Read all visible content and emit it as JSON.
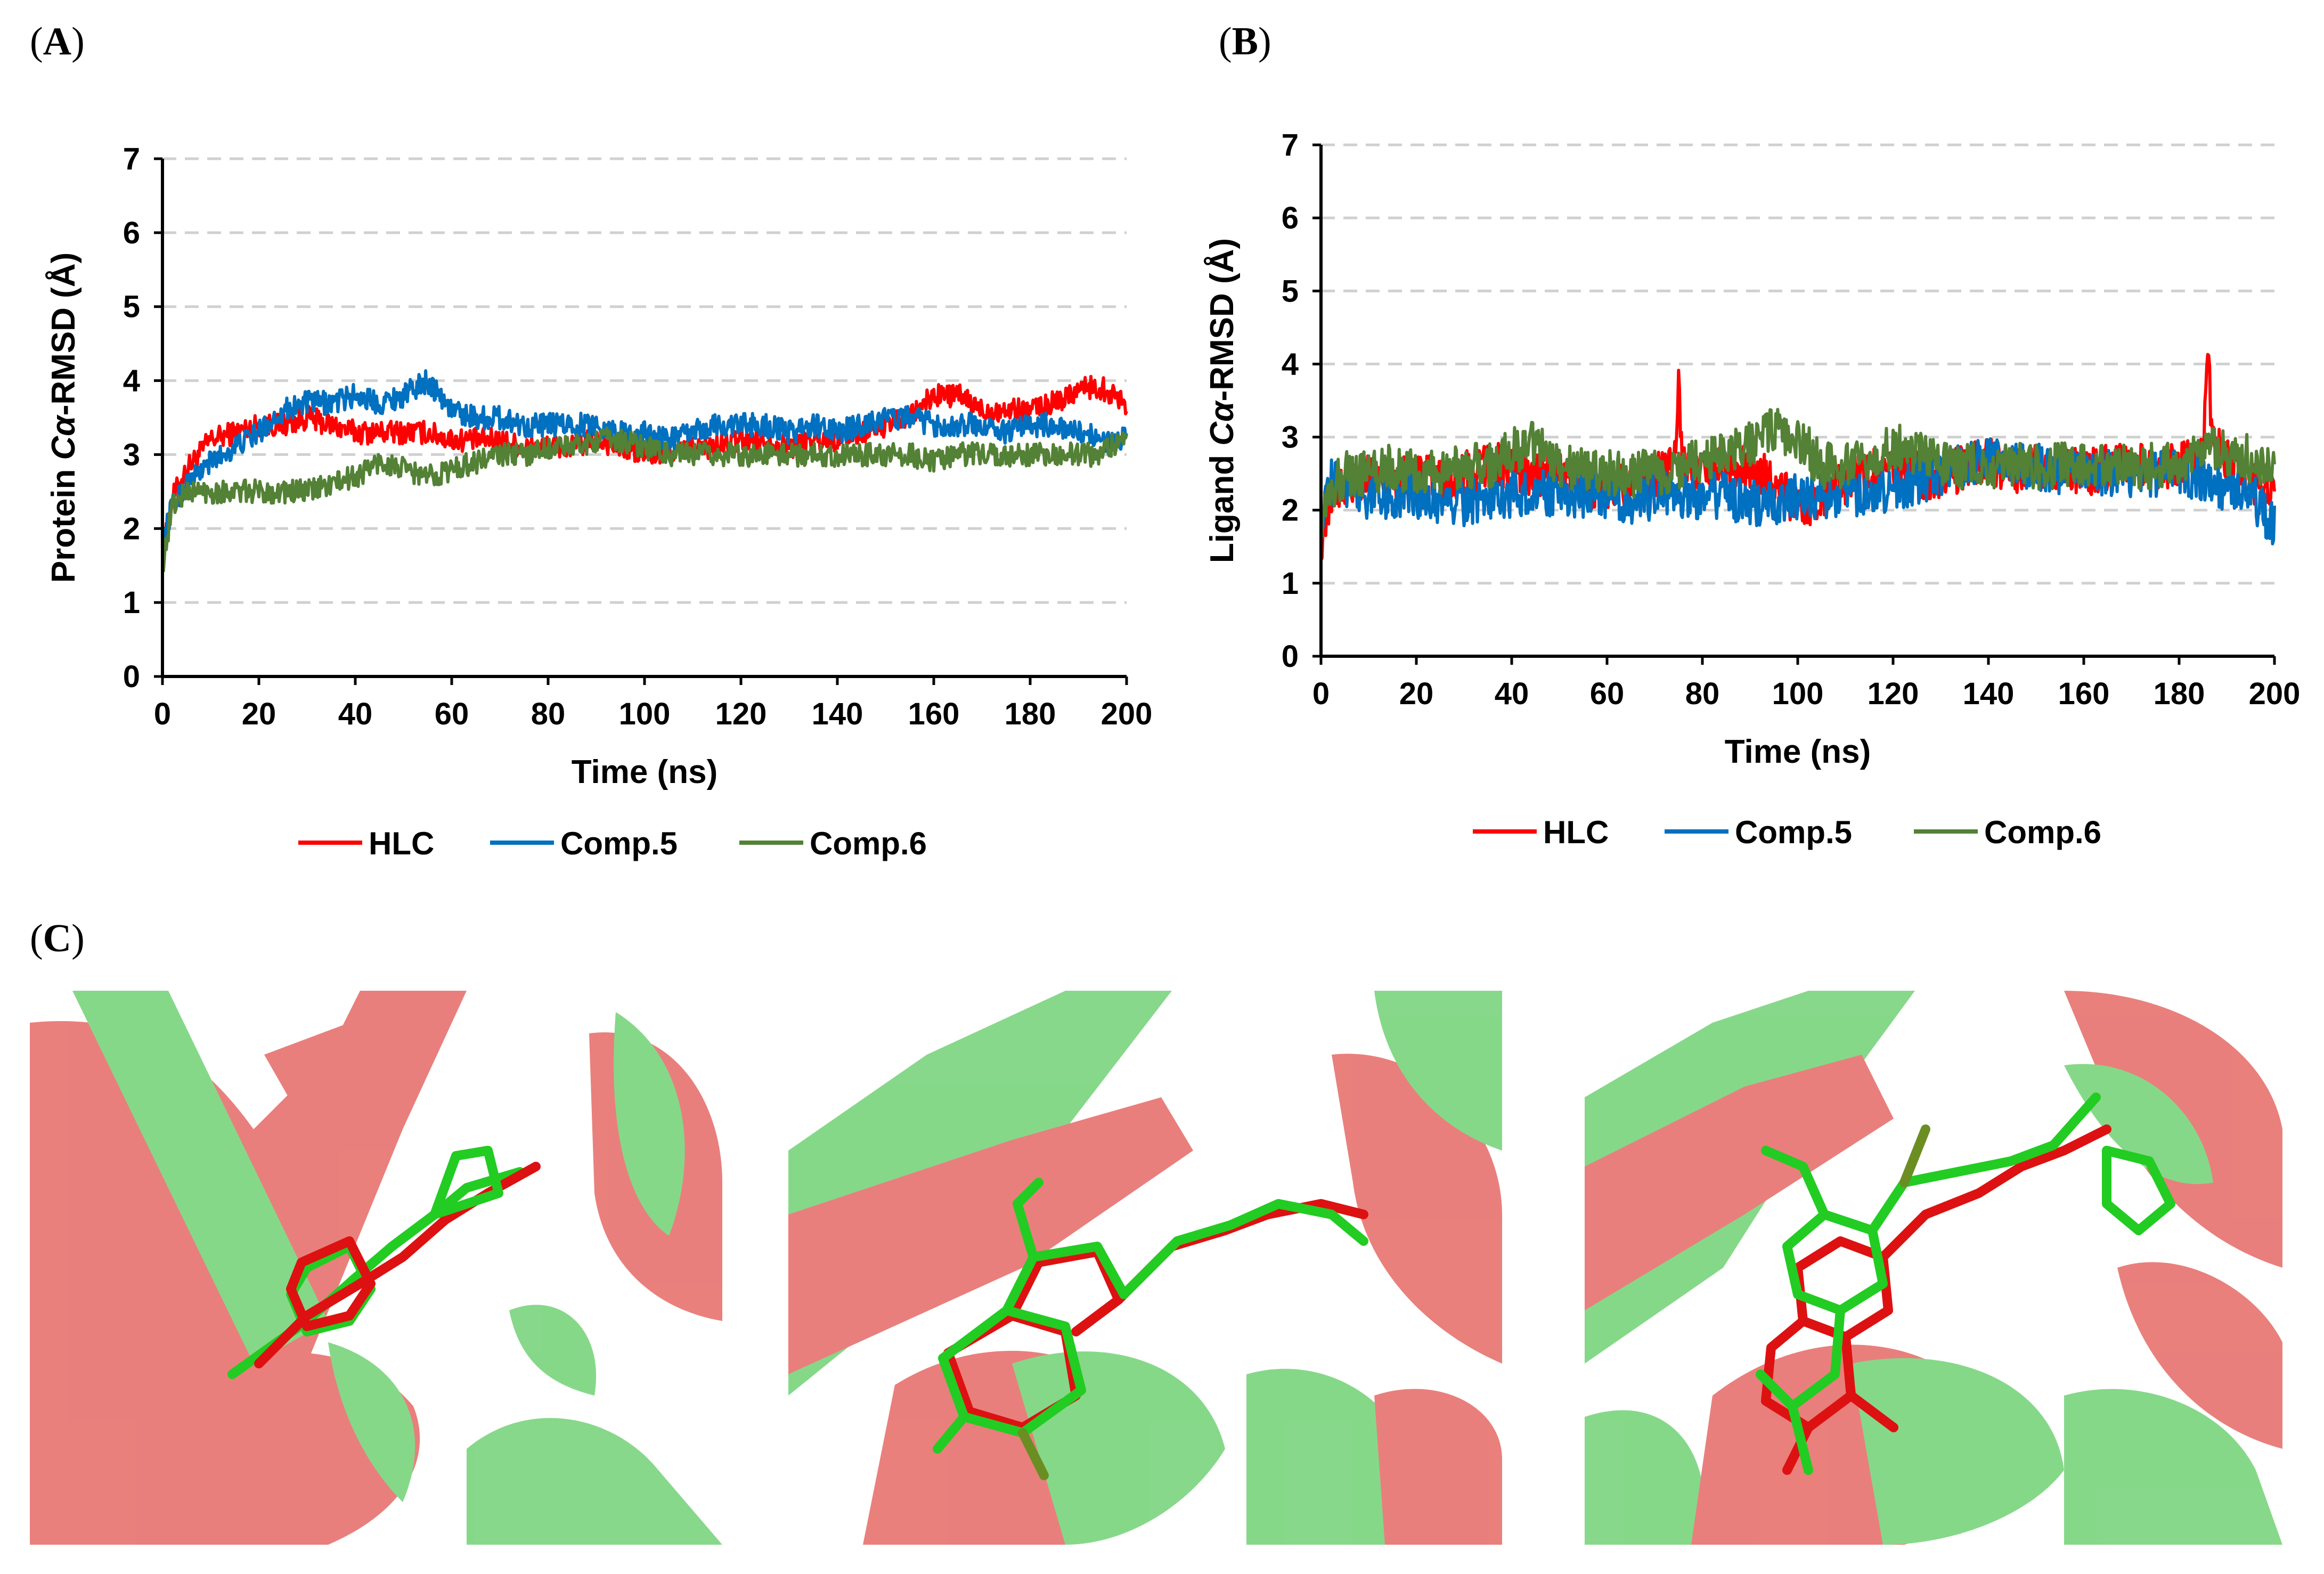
{
  "panels": {
    "A": {
      "open": "(",
      "letter": "A",
      "close": ")"
    },
    "B": {
      "open": "(",
      "letter": "B",
      "close": ")"
    },
    "C": {
      "open": "(",
      "letter": "C",
      "close": ")"
    }
  },
  "colors": {
    "HLC": "#ff0000",
    "Comp.5": "#0070c0",
    "Comp.6": "#538135",
    "protein_red": "#d9534f",
    "protein_green": "#5fd35f",
    "ligand_green": "#22cc22",
    "ligand_red": "#dd1111"
  },
  "chart_data": [
    {
      "id": "A",
      "type": "line",
      "title": "",
      "xlabel": "Time (ns)",
      "ylabel_prefix": "Protein ",
      "ylabel_italic": "Cα",
      "ylabel_suffix": "-RMSD (Å)",
      "xlim": [
        0,
        200
      ],
      "ylim": [
        0,
        7
      ],
      "xticks": [
        "0",
        "20",
        "40",
        "60",
        "80",
        "100",
        "120",
        "140",
        "160",
        "180",
        "200"
      ],
      "yticks": [
        "0",
        "1",
        "2",
        "3",
        "4",
        "5",
        "6",
        "7"
      ],
      "grid": "horizontal-dashed",
      "legend": "bottom",
      "series": [
        {
          "name": "HLC",
          "x": [
            0,
            2,
            5,
            10,
            15,
            20,
            25,
            30,
            35,
            40,
            45,
            50,
            55,
            60,
            65,
            70,
            75,
            80,
            85,
            90,
            95,
            100,
            105,
            110,
            115,
            120,
            125,
            130,
            135,
            140,
            145,
            150,
            155,
            160,
            165,
            170,
            175,
            180,
            185,
            190,
            195,
            200
          ],
          "y": [
            1.6,
            2.4,
            2.8,
            3.2,
            3.3,
            3.4,
            3.4,
            3.5,
            3.4,
            3.3,
            3.3,
            3.3,
            3.3,
            3.2,
            3.2,
            3.2,
            3.1,
            3.1,
            3.1,
            3.2,
            3.1,
            3.0,
            3.0,
            3.1,
            3.1,
            3.2,
            3.2,
            3.1,
            3.2,
            3.2,
            3.3,
            3.4,
            3.5,
            3.8,
            3.8,
            3.6,
            3.6,
            3.6,
            3.7,
            3.9,
            3.9,
            3.7
          ]
        },
        {
          "name": "Comp.5",
          "x": [
            0,
            2,
            5,
            10,
            15,
            20,
            25,
            30,
            35,
            40,
            45,
            50,
            55,
            60,
            65,
            70,
            75,
            80,
            85,
            90,
            95,
            100,
            105,
            110,
            115,
            120,
            125,
            130,
            135,
            140,
            145,
            150,
            155,
            160,
            165,
            170,
            175,
            180,
            185,
            190,
            195,
            200
          ],
          "y": [
            1.8,
            2.3,
            2.6,
            2.9,
            3.1,
            3.3,
            3.6,
            3.7,
            3.7,
            3.8,
            3.7,
            3.8,
            4.0,
            3.6,
            3.5,
            3.5,
            3.4,
            3.4,
            3.4,
            3.4,
            3.3,
            3.3,
            3.2,
            3.3,
            3.4,
            3.4,
            3.4,
            3.3,
            3.4,
            3.3,
            3.4,
            3.5,
            3.5,
            3.4,
            3.4,
            3.4,
            3.3,
            3.4,
            3.4,
            3.3,
            3.2,
            3.2
          ]
        },
        {
          "name": "Comp.6",
          "x": [
            0,
            2,
            5,
            10,
            15,
            20,
            25,
            30,
            35,
            40,
            45,
            50,
            55,
            60,
            65,
            70,
            75,
            80,
            85,
            90,
            95,
            100,
            105,
            110,
            115,
            120,
            125,
            130,
            135,
            140,
            145,
            150,
            155,
            160,
            165,
            170,
            175,
            180,
            185,
            190,
            195,
            200
          ],
          "y": [
            1.5,
            2.3,
            2.5,
            2.5,
            2.5,
            2.5,
            2.5,
            2.5,
            2.6,
            2.7,
            2.9,
            2.8,
            2.7,
            2.8,
            2.9,
            3.0,
            3.0,
            3.1,
            3.1,
            3.2,
            3.2,
            3.1,
            3.0,
            3.0,
            3.0,
            3.0,
            3.0,
            3.0,
            3.0,
            3.0,
            3.0,
            3.0,
            3.0,
            2.9,
            3.0,
            3.0,
            3.0,
            3.0,
            3.0,
            3.0,
            3.0,
            3.3
          ]
        }
      ]
    },
    {
      "id": "B",
      "type": "line",
      "title": "",
      "xlabel": "Time (ns)",
      "ylabel_prefix": "Ligand ",
      "ylabel_italic": "Cα",
      "ylabel_suffix": "-RMSD (Å)",
      "xlim": [
        0,
        200
      ],
      "ylim": [
        0,
        7
      ],
      "xticks": [
        "0",
        "20",
        "40",
        "60",
        "80",
        "100",
        "120",
        "140",
        "160",
        "180",
        "200"
      ],
      "yticks": [
        "0",
        "1",
        "2",
        "3",
        "4",
        "5",
        "6",
        "7"
      ],
      "grid": "horizontal-dashed",
      "legend": "bottom",
      "series": [
        {
          "name": "HLC",
          "x": [
            0,
            2,
            5,
            10,
            15,
            20,
            25,
            30,
            35,
            40,
            45,
            50,
            55,
            60,
            65,
            70,
            74,
            75,
            76,
            80,
            85,
            90,
            95,
            100,
            105,
            110,
            115,
            120,
            125,
            130,
            135,
            140,
            145,
            150,
            155,
            160,
            165,
            170,
            175,
            180,
            185,
            186,
            187,
            190,
            195,
            200
          ],
          "y": [
            1.6,
            2.1,
            2.4,
            2.5,
            2.4,
            2.5,
            2.4,
            2.5,
            2.6,
            2.6,
            2.5,
            2.5,
            2.3,
            2.3,
            2.3,
            2.5,
            2.6,
            3.8,
            2.6,
            2.5,
            2.6,
            2.6,
            2.4,
            2.0,
            2.2,
            2.4,
            2.5,
            2.6,
            2.5,
            2.4,
            2.6,
            2.7,
            2.5,
            2.6,
            2.6,
            2.5,
            2.6,
            2.6,
            2.6,
            2.6,
            2.7,
            4.1,
            3.0,
            2.7,
            2.4,
            2.4
          ]
        },
        {
          "name": "Comp.5",
          "x": [
            0,
            2,
            5,
            10,
            15,
            20,
            25,
            30,
            35,
            40,
            45,
            50,
            55,
            60,
            65,
            70,
            75,
            80,
            85,
            90,
            95,
            100,
            105,
            110,
            115,
            120,
            125,
            130,
            135,
            140,
            145,
            150,
            155,
            160,
            165,
            170,
            175,
            180,
            185,
            190,
            195,
            200
          ],
          "y": [
            2.0,
            2.4,
            2.3,
            2.2,
            2.2,
            2.2,
            2.1,
            2.1,
            2.2,
            2.2,
            2.3,
            2.2,
            2.2,
            2.2,
            2.1,
            2.2,
            2.2,
            2.2,
            2.2,
            2.1,
            2.1,
            2.2,
            2.2,
            2.2,
            2.2,
            2.3,
            2.4,
            2.5,
            2.6,
            2.7,
            2.6,
            2.6,
            2.5,
            2.6,
            2.5,
            2.5,
            2.5,
            2.5,
            2.4,
            2.3,
            2.2,
            1.8
          ]
        },
        {
          "name": "Comp.6",
          "x": [
            0,
            2,
            5,
            10,
            15,
            20,
            25,
            30,
            35,
            40,
            45,
            50,
            55,
            60,
            65,
            70,
            75,
            80,
            85,
            90,
            95,
            100,
            105,
            110,
            115,
            120,
            125,
            130,
            135,
            140,
            145,
            150,
            155,
            160,
            165,
            170,
            175,
            180,
            185,
            190,
            195,
            200
          ],
          "y": [
            1.9,
            2.3,
            2.5,
            2.5,
            2.6,
            2.5,
            2.5,
            2.6,
            2.6,
            2.8,
            2.9,
            2.6,
            2.6,
            2.5,
            2.5,
            2.5,
            2.6,
            2.7,
            2.8,
            2.9,
            3.1,
            3.0,
            2.6,
            2.6,
            2.7,
            2.9,
            2.8,
            2.6,
            2.6,
            2.6,
            2.6,
            2.6,
            2.6,
            2.6,
            2.6,
            2.6,
            2.6,
            2.6,
            2.8,
            2.8,
            2.7,
            2.6
          ]
        }
      ]
    }
  ]
}
